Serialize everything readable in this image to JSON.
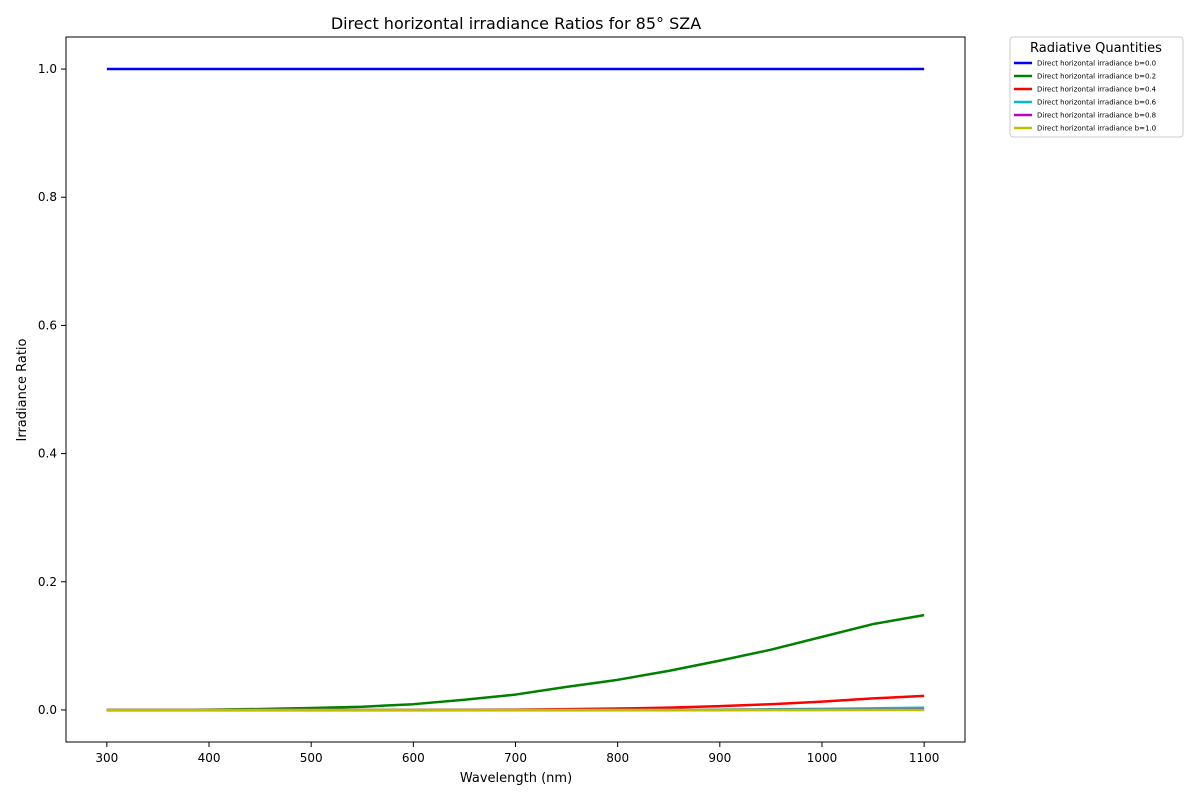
{
  "chart_data": {
    "type": "line",
    "title": "Direct horizontal irradiance Ratios for 85° SZA",
    "xlabel": "Wavelength (nm)",
    "ylabel": "Irradiance Ratio",
    "xlim": [
      260,
      1140
    ],
    "ylim": [
      -0.05,
      1.05
    ],
    "xticks": [
      300,
      400,
      500,
      600,
      700,
      800,
      900,
      1000,
      1100
    ],
    "xtick_labels": [
      "300",
      "400",
      "500",
      "600",
      "700",
      "800",
      "900",
      "1000",
      "1100"
    ],
    "yticks": [
      0.0,
      0.2,
      0.4,
      0.6,
      0.8,
      1.0
    ],
    "ytick_labels": [
      "0.0",
      "0.2",
      "0.4",
      "0.6",
      "0.8",
      "1.0"
    ],
    "grid": false,
    "legend": {
      "title": "Radiative Quantities",
      "placement": "outside upper right"
    },
    "x": [
      300,
      350,
      400,
      450,
      500,
      550,
      600,
      650,
      700,
      750,
      800,
      850,
      900,
      950,
      1000,
      1050,
      1100
    ],
    "series": [
      {
        "name": "Direct horizontal irradiance b=0.0",
        "color": "#0000ff",
        "values": [
          1.0,
          1.0,
          1.0,
          1.0,
          1.0,
          1.0,
          1.0,
          1.0,
          1.0,
          1.0,
          1.0,
          1.0,
          1.0,
          1.0,
          1.0,
          1.0,
          1.0
        ]
      },
      {
        "name": "Direct horizontal irradiance b=0.2",
        "color": "#008000",
        "values": [
          0.0,
          0.0,
          0.0005,
          0.0015,
          0.003,
          0.005,
          0.009,
          0.016,
          0.024,
          0.036,
          0.047,
          0.061,
          0.077,
          0.094,
          0.114,
          0.134,
          0.148
        ]
      },
      {
        "name": "Direct horizontal irradiance b=0.4",
        "color": "#ff0000",
        "values": [
          0.0,
          0.0,
          0.0,
          0.0,
          0.0,
          0.0,
          0.0,
          0.0003,
          0.0006,
          0.0013,
          0.0022,
          0.0037,
          0.006,
          0.009,
          0.013,
          0.018,
          0.022
        ]
      },
      {
        "name": "Direct horizontal irradiance b=0.6",
        "color": "#00bfbf",
        "values": [
          0.0,
          0.0,
          0.0,
          0.0,
          0.0,
          0.0,
          0.0,
          0.0,
          0.0,
          0.0,
          0.0001,
          0.0002,
          0.0005,
          0.001,
          0.0016,
          0.0025,
          0.0035
        ]
      },
      {
        "name": "Direct horizontal irradiance b=0.8",
        "color": "#bf00bf",
        "values": [
          0.0,
          0.0,
          0.0,
          0.0,
          0.0,
          0.0,
          0.0,
          0.0,
          0.0,
          0.0,
          0.0,
          0.0,
          0.0,
          0.0001,
          0.0002,
          0.0003,
          0.0005
        ]
      },
      {
        "name": "Direct horizontal irradiance b=1.0",
        "color": "#bfbf00",
        "values": [
          0.0,
          0.0,
          0.0,
          0.0,
          0.0,
          0.0,
          0.0,
          0.0,
          0.0,
          0.0,
          0.0,
          0.0,
          0.0,
          0.0,
          0.0,
          0.0,
          0.0
        ]
      }
    ]
  }
}
